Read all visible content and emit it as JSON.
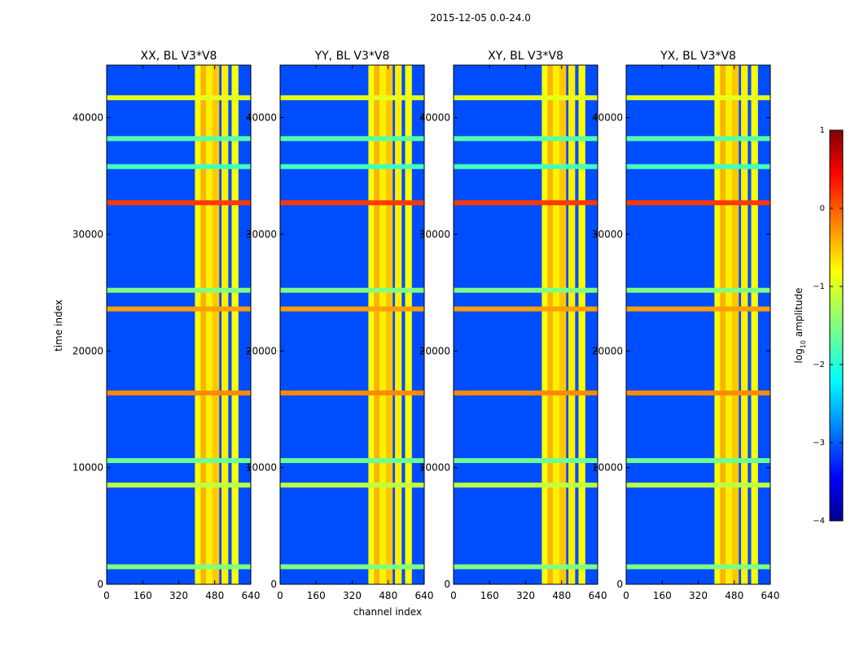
{
  "suptitle": "2015-12-05 0.0-24.0",
  "chart_data": {
    "type": "heatmap",
    "suptitle": "2015-12-05 0.0-24.0",
    "xlabel": "channel index",
    "ylabel": "time index",
    "xlim": [
      0,
      640
    ],
    "ylim": [
      0,
      44500
    ],
    "xticks": [
      0,
      160,
      320,
      480,
      640
    ],
    "xtick_labels": [
      "0",
      "160",
      "320",
      "480",
      "640"
    ],
    "yticks": [
      0,
      10000,
      20000,
      30000,
      40000
    ],
    "ytick_labels": [
      "0",
      "10000",
      "20000",
      "30000",
      "40000"
    ],
    "panels": [
      {
        "title": "XX, BL V3*V8",
        "polarization": "XX",
        "baseline": "V3*V8"
      },
      {
        "title": "YY, BL V3*V8",
        "polarization": "YY",
        "baseline": "V3*V8"
      },
      {
        "title": "XY, BL V3*V8",
        "polarization": "XY",
        "baseline": "V3*V8"
      },
      {
        "title": "YX, BL V3*V8",
        "polarization": "YX",
        "baseline": "V3*V8"
      }
    ],
    "colorbar": {
      "label": "log10 amplitude",
      "label_main": "log",
      "label_sub": "10",
      "label_rest": " amplitude",
      "range": [
        -4,
        1
      ],
      "ticks": [
        1,
        0,
        -1,
        -2,
        -3,
        -4
      ],
      "tick_labels": [
        "1",
        "0",
        "−1",
        "−2",
        "−3",
        "−4"
      ],
      "colormap": "jet"
    },
    "vertical_bands": [
      {
        "channel_start": 392,
        "channel_end": 418,
        "level": -0.9
      },
      {
        "channel_start": 418,
        "channel_end": 440,
        "level": -0.5
      },
      {
        "channel_start": 440,
        "channel_end": 470,
        "level": -0.8
      },
      {
        "channel_start": 470,
        "channel_end": 500,
        "level": -0.6
      },
      {
        "channel_start": 510,
        "channel_end": 540,
        "level": -0.8
      },
      {
        "channel_start": 555,
        "channel_end": 585,
        "level": -0.9
      }
    ],
    "horizontal_lines": [
      {
        "time": 8500,
        "level": -1.2
      },
      {
        "time": 16400,
        "level": -0.3
      },
      {
        "time": 32700,
        "level": 0.1
      },
      {
        "time": 25200,
        "level": -1.5
      },
      {
        "time": 35800,
        "level": -1.8
      },
      {
        "time": 38200,
        "level": -1.7
      },
      {
        "time": 41700,
        "level": -1.0
      },
      {
        "time": 1500,
        "level": -1.5
      },
      {
        "time": 10600,
        "level": -1.6
      },
      {
        "time": 23600,
        "level": -0.4
      }
    ],
    "background_level": -3.0
  }
}
